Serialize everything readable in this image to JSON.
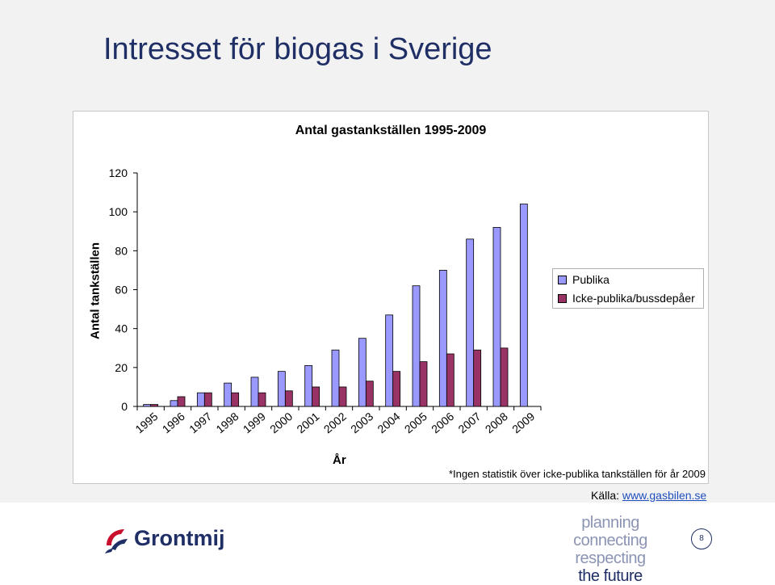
{
  "slide": {
    "title": "Intresset för biogas i Sverige",
    "footnote": "*Ingen statistik över icke-publika tankställen för år 2009",
    "source_label": "Källa: ",
    "source_link": "www.gasbilen.se",
    "logo_text": "Grontmij",
    "tagline": [
      "planning connecting",
      "respecting",
      "the future"
    ],
    "page_number": "8"
  },
  "colors": {
    "publika": "#9999ff",
    "icke_publika": "#993366",
    "title": "#1f2f66"
  },
  "chart_data": {
    "type": "bar",
    "title": "Antal gastankställen 1995-2009",
    "xlabel": "År",
    "ylabel": "Antal tankställen",
    "ylim": [
      0,
      120
    ],
    "yticks": [
      0,
      20,
      40,
      60,
      80,
      100,
      120
    ],
    "grid": false,
    "legend": "right",
    "categories": [
      "1995",
      "1996",
      "1997",
      "1998",
      "1999",
      "2000",
      "2001",
      "2002",
      "2003",
      "2004",
      "2005",
      "2006",
      "2007",
      "2008",
      "2009"
    ],
    "series": [
      {
        "name": "Publika",
        "values": [
          1,
          3,
          7,
          12,
          15,
          18,
          21,
          29,
          35,
          47,
          62,
          70,
          86,
          92,
          104
        ]
      },
      {
        "name": "Icke-publika/bussdepåer",
        "values": [
          1,
          5,
          7,
          7,
          7,
          8,
          10,
          10,
          13,
          18,
          23,
          27,
          29,
          30,
          0
        ]
      }
    ]
  }
}
